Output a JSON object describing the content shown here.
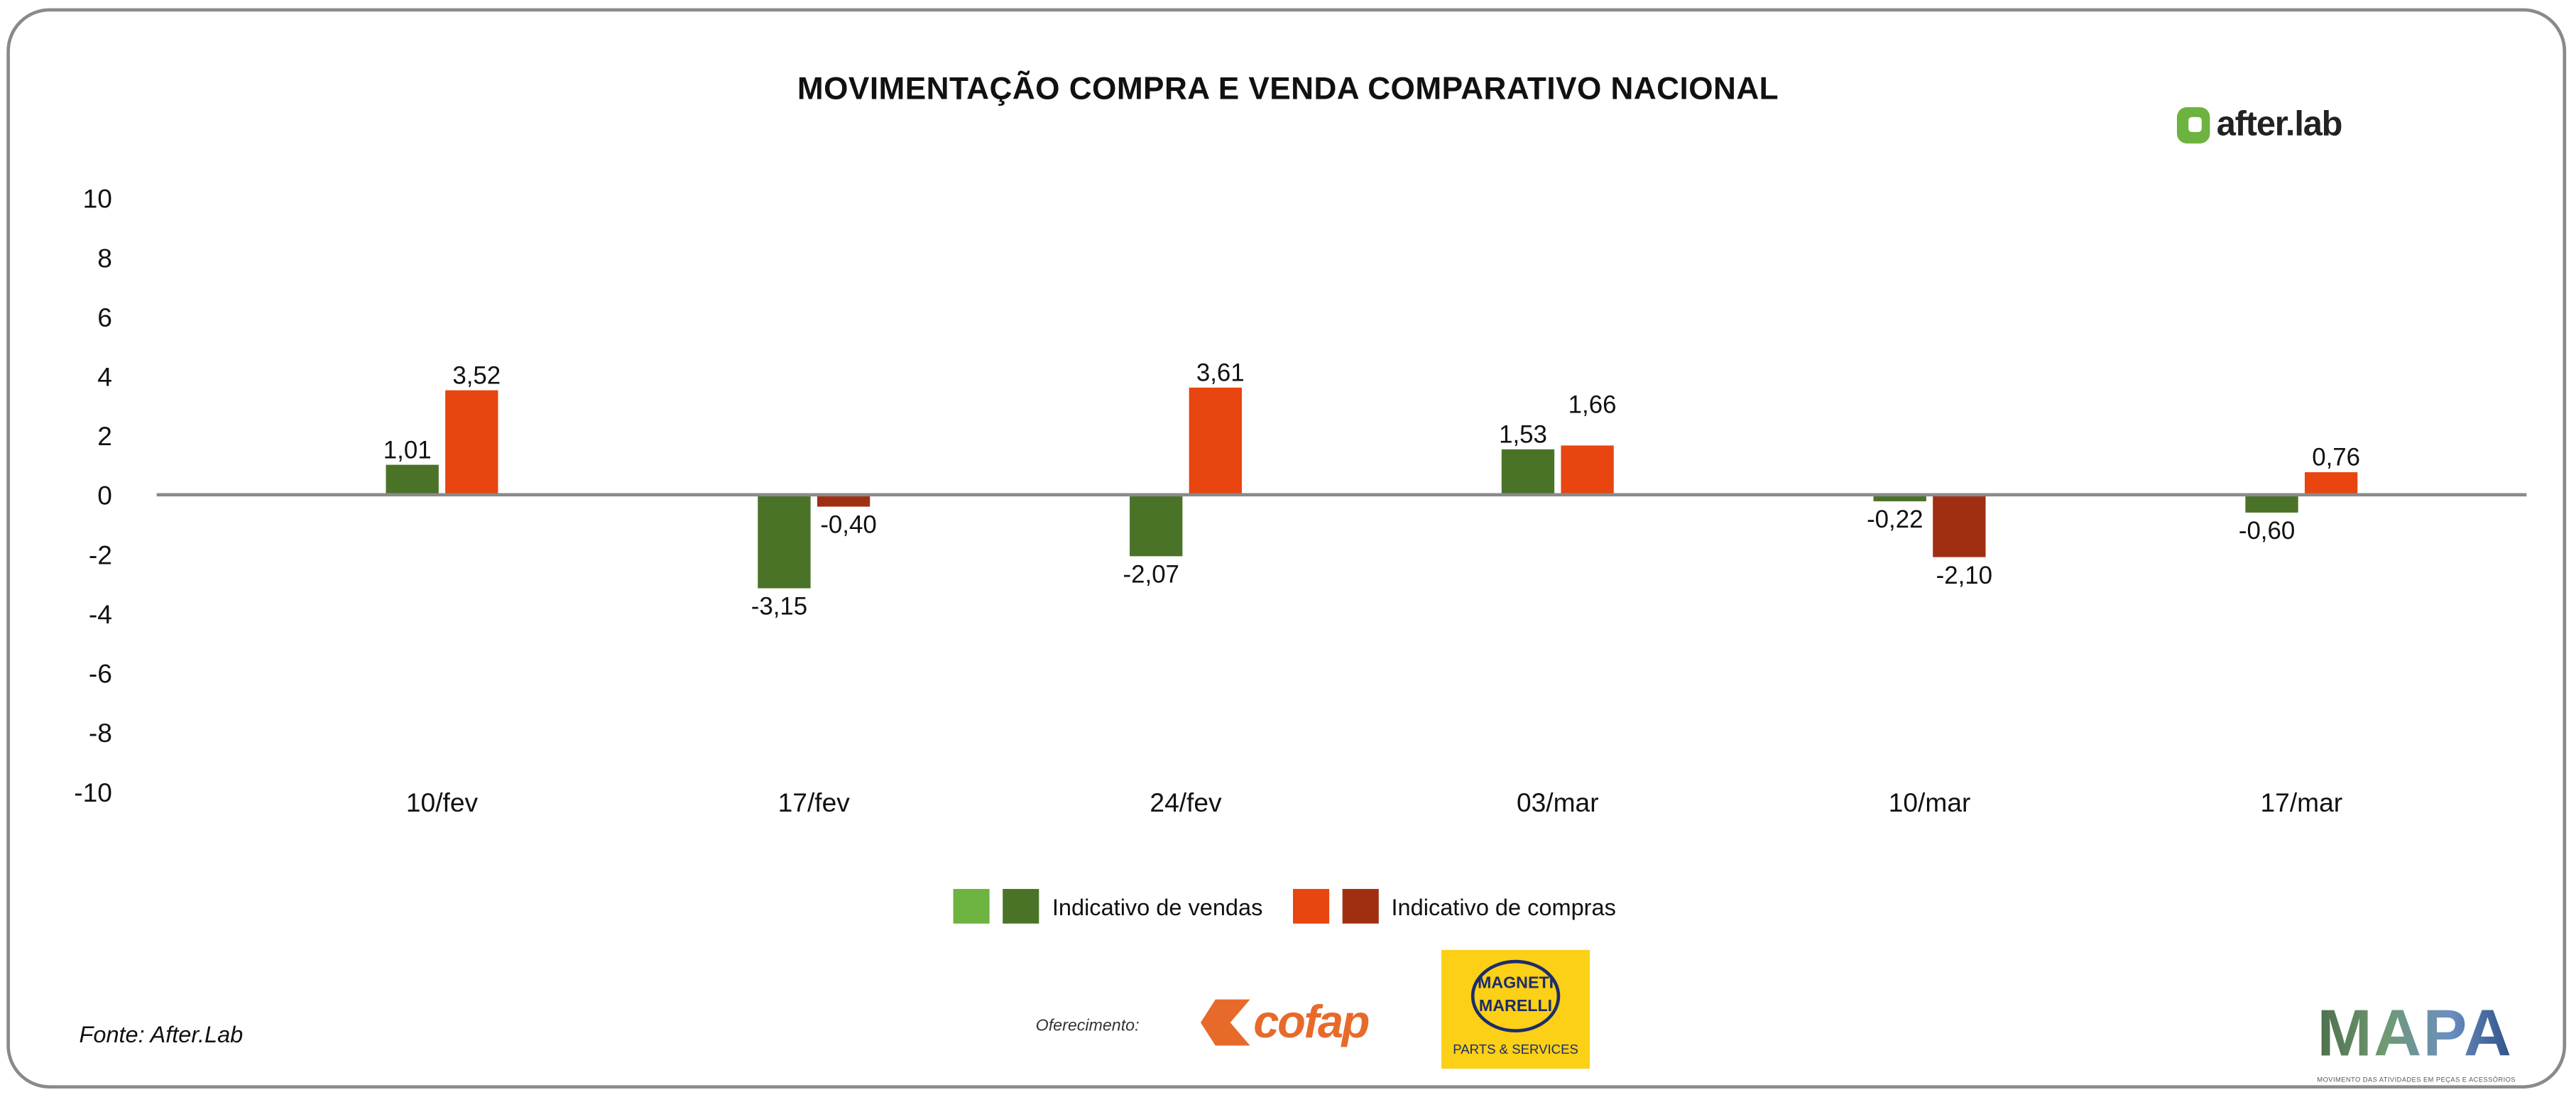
{
  "chart_data": {
    "type": "bar",
    "title": "MOVIMENTAÇÃO COMPRA E VENDA COMPARATIVO NACIONAL",
    "categories": [
      "10/fev",
      "17/fev",
      "24/fev",
      "03/mar",
      "10/mar",
      "17/mar"
    ],
    "series": [
      {
        "name": "Indicativo de vendas",
        "values": [
          1.01,
          -3.15,
          -2.07,
          1.53,
          -0.22,
          -0.6
        ],
        "labels": [
          "1,01",
          "-3,15",
          "-2,07",
          "1,53",
          "-0,22",
          "-0,60"
        ],
        "color_positive": "#4a7328",
        "color_negative": "#4a7328",
        "legend_colors": [
          "#6db33f",
          "#4a7328"
        ]
      },
      {
        "name": "Indicativo de compras",
        "values": [
          3.52,
          -0.4,
          3.61,
          1.66,
          -2.1,
          0.76
        ],
        "labels": [
          "3,52",
          "-0,40",
          "3,61",
          "1,66",
          "-2,10",
          "0,76"
        ],
        "color_positive": "#e84511",
        "color_negative": "#a02f12",
        "legend_colors": [
          "#e84511",
          "#a02f12"
        ]
      }
    ],
    "ylim": [
      -10,
      10
    ],
    "yticks": [
      "10",
      "8",
      "6",
      "4",
      "2",
      "0",
      "-2",
      "-4",
      "-6",
      "-8",
      "-10"
    ],
    "yticks_values": [
      10,
      8,
      6,
      4,
      2,
      0,
      -2,
      -4,
      -6,
      -8,
      -10
    ],
    "grid": false,
    "legend_position": "bottom"
  },
  "source": "Fonte: After.Lab",
  "sponsor_label": "Oferecimento:",
  "logos": {
    "afterlab": "after.lab",
    "cofap": "cofap",
    "magneti_marelli": [
      "MAGNETI",
      "MARELLI"
    ],
    "magneti_tagline": "PARTS & SERVICES",
    "mapa": "MAPA",
    "mapa_tagline": "MOVIMENTO DAS ATIVIDADES EM PEÇAS E ACESSÓRIOS"
  }
}
